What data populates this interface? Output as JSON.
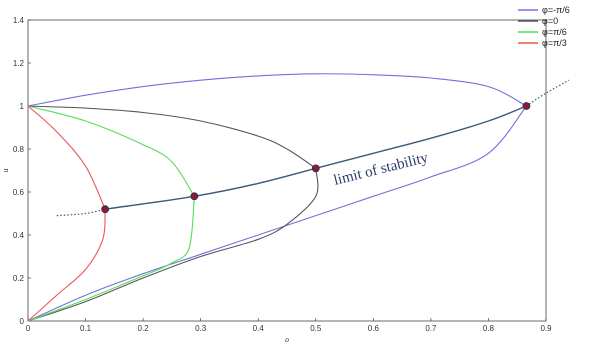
{
  "chart_data": {
    "type": "line",
    "xlabel": "ρ",
    "ylabel": "u",
    "xlim": [
      0,
      0.9
    ],
    "ylim": [
      0,
      1.4
    ],
    "x_ticks": [
      "0",
      "0.1",
      "0.2",
      "0.3",
      "0.4",
      "0.5",
      "0.6",
      "0.7",
      "0.8",
      "0.9"
    ],
    "y_ticks": [
      "0",
      "0.2",
      "0.4",
      "0.6",
      "0.8",
      "1",
      "1.2",
      "1.4"
    ],
    "grid": false,
    "legend_position": "top-right",
    "annotation": "limit of stability",
    "series": [
      {
        "name": "φ=-π/6",
        "color": "#7070e0",
        "upper": [
          [
            0,
            1
          ],
          [
            0.1,
            1.05
          ],
          [
            0.2,
            1.09
          ],
          [
            0.3,
            1.12
          ],
          [
            0.4,
            1.14
          ],
          [
            0.5,
            1.15
          ],
          [
            0.6,
            1.145
          ],
          [
            0.7,
            1.13
          ],
          [
            0.8,
            1.09
          ],
          [
            0.866,
            1
          ]
        ],
        "lower": [
          [
            0,
            0
          ],
          [
            0.1,
            0.12
          ],
          [
            0.2,
            0.22
          ],
          [
            0.3,
            0.31
          ],
          [
            0.4,
            0.4
          ],
          [
            0.5,
            0.49
          ],
          [
            0.6,
            0.58
          ],
          [
            0.7,
            0.67
          ],
          [
            0.8,
            0.78
          ],
          [
            0.866,
            1
          ]
        ]
      },
      {
        "name": "φ=0",
        "color": "#555555",
        "upper": [
          [
            0,
            1
          ],
          [
            0.1,
            0.99
          ],
          [
            0.2,
            0.97
          ],
          [
            0.3,
            0.93
          ],
          [
            0.4,
            0.86
          ],
          [
            0.45,
            0.8
          ],
          [
            0.5,
            0.71
          ]
        ],
        "lower": [
          [
            0,
            0
          ],
          [
            0.1,
            0.09
          ],
          [
            0.2,
            0.2
          ],
          [
            0.3,
            0.3
          ],
          [
            0.4,
            0.38
          ],
          [
            0.45,
            0.45
          ],
          [
            0.5,
            0.58
          ],
          [
            0.5,
            0.71
          ]
        ]
      },
      {
        "name": "φ=π/6",
        "color": "#55dd55",
        "upper": [
          [
            0,
            1
          ],
          [
            0.1,
            0.93
          ],
          [
            0.2,
            0.82
          ],
          [
            0.25,
            0.74
          ],
          [
            0.289,
            0.58
          ]
        ],
        "lower": [
          [
            0,
            0
          ],
          [
            0.1,
            0.1
          ],
          [
            0.2,
            0.21
          ],
          [
            0.25,
            0.27
          ],
          [
            0.28,
            0.34
          ],
          [
            0.289,
            0.58
          ]
        ]
      },
      {
        "name": "φ=π/3",
        "color": "#ee5555",
        "upper": [
          [
            0,
            1
          ],
          [
            0.05,
            0.88
          ],
          [
            0.1,
            0.72
          ],
          [
            0.134,
            0.52
          ]
        ],
        "lower": [
          [
            0,
            0
          ],
          [
            0.05,
            0.12
          ],
          [
            0.1,
            0.24
          ],
          [
            0.13,
            0.38
          ],
          [
            0.134,
            0.52
          ]
        ]
      }
    ],
    "stability_curve": {
      "color": "#3a5a7a",
      "solid": [
        [
          0.134,
          0.52
        ],
        [
          0.289,
          0.58
        ],
        [
          0.4,
          0.64
        ],
        [
          0.5,
          0.71
        ],
        [
          0.6,
          0.78
        ],
        [
          0.7,
          0.85
        ],
        [
          0.8,
          0.93
        ],
        [
          0.866,
          1
        ]
      ],
      "dotted_left": [
        [
          0.05,
          0.49
        ],
        [
          0.1,
          0.5
        ],
        [
          0.134,
          0.52
        ]
      ],
      "dotted_right": [
        [
          0.866,
          1
        ],
        [
          0.9,
          1.06
        ],
        [
          0.94,
          1.12
        ]
      ]
    },
    "points": [
      [
        0.134,
        0.52
      ],
      [
        0.289,
        0.58
      ],
      [
        0.5,
        0.71
      ],
      [
        0.866,
        1
      ]
    ]
  }
}
